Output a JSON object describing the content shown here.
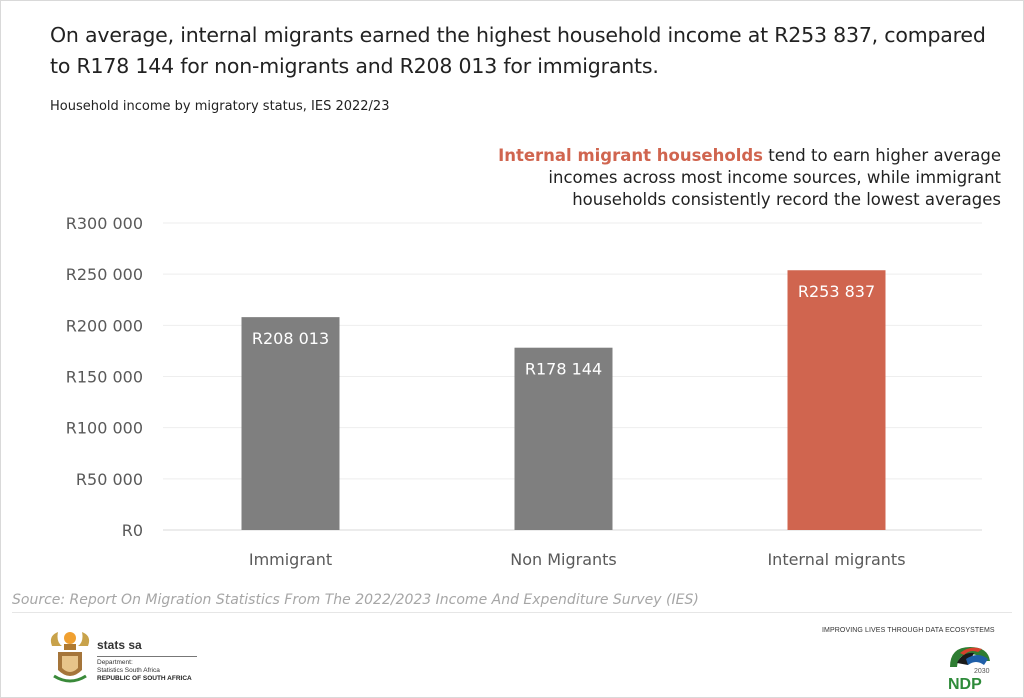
{
  "headline": "On average, internal migrants earned the highest household income at R253 837, compared to R178 144 for non-migrants and R208 013 for immigrants.",
  "subtitle": "Household income by migratory status, IES 2022/23",
  "callout": {
    "highlight": "Internal migrant households",
    "rest": " tend to earn higher average incomes across most income sources, while immigrant households consistently record the lowest averages"
  },
  "source": "Source: Report On Migration Statistics From The 2022/2023 Income And Expenditure Survey (IES)",
  "footer": {
    "org_name": "stats sa",
    "dept_line1": "Department:",
    "dept_line2": "Statistics South Africa",
    "country": "REPUBLIC OF SOUTH AFRICA",
    "tagline": "IMPROVING LIVES THROUGH DATA ECOSYSTEMS",
    "ndp_label": "NDP",
    "ndp_year": "2030"
  },
  "colors": {
    "highlight": "#d0654f",
    "neutral_bar": "#7f7f7f",
    "gridline": "#eeeeee"
  },
  "chart_data": {
    "type": "bar",
    "title": "Household income by migratory status, IES 2022/23",
    "xlabel": "",
    "ylabel": "",
    "categories": [
      "Immigrant",
      "Non Migrants",
      "Internal migrants"
    ],
    "values": [
      208013,
      178144,
      253837
    ],
    "data_labels": [
      "R208 013",
      "R178 144",
      "R253 837"
    ],
    "bar_colors": [
      "#7f7f7f",
      "#7f7f7f",
      "#d0654f"
    ],
    "ylim": [
      0,
      300000
    ],
    "yticks": [
      0,
      50000,
      100000,
      150000,
      200000,
      250000,
      300000
    ],
    "ytick_labels": [
      "R0",
      "R50 000",
      "R100 000",
      "R150 000",
      "R200 000",
      "R250 000",
      "R300 000"
    ],
    "grid": true,
    "legend": "none"
  }
}
